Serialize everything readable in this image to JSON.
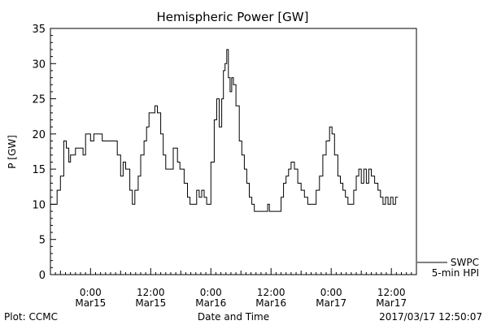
{
  "chart_data": {
    "type": "line",
    "title": "Hemispheric Power [GW]",
    "xlabel": "Date and Time",
    "ylabel": "P [GW]",
    "ylim": [
      0,
      35
    ],
    "y_ticks": [
      0,
      5,
      10,
      15,
      20,
      25,
      30,
      35
    ],
    "xlim": [
      "2017-03-14T16:00",
      "2017-03-17T17:00"
    ],
    "x_ticks": [
      {
        "time": "2017-03-15T00:00",
        "top": "0:00",
        "bottom": "Mar15"
      },
      {
        "time": "2017-03-15T12:00",
        "top": "12:00",
        "bottom": "Mar15"
      },
      {
        "time": "2017-03-16T00:00",
        "top": "0:00",
        "bottom": "Mar16"
      },
      {
        "time": "2017-03-16T12:00",
        "top": "12:00",
        "bottom": "Mar16"
      },
      {
        "time": "2017-03-17T00:00",
        "top": "0:00",
        "bottom": "Mar17"
      },
      {
        "time": "2017-03-17T12:00",
        "top": "12:00",
        "bottom": "Mar17"
      }
    ],
    "grid": false,
    "legend_position": "bottom-right",
    "series": [
      {
        "name": "SWPC 5-min HPI",
        "color": "#000000",
        "points": [
          [
            "2017-03-14T16:00",
            10
          ],
          [
            "2017-03-14T16:50",
            10
          ],
          [
            "2017-03-14T17:20",
            12
          ],
          [
            "2017-03-14T18:00",
            14
          ],
          [
            "2017-03-14T18:40",
            19
          ],
          [
            "2017-03-14T19:10",
            18
          ],
          [
            "2017-03-14T19:40",
            16
          ],
          [
            "2017-03-14T20:00",
            17
          ],
          [
            "2017-03-14T20:30",
            17
          ],
          [
            "2017-03-14T21:00",
            18
          ],
          [
            "2017-03-14T22:00",
            18
          ],
          [
            "2017-03-14T22:30",
            17
          ],
          [
            "2017-03-14T23:00",
            20
          ],
          [
            "2017-03-15T00:00",
            19
          ],
          [
            "2017-03-15T00:40",
            20
          ],
          [
            "2017-03-15T01:50",
            20
          ],
          [
            "2017-03-15T02:20",
            19
          ],
          [
            "2017-03-15T04:30",
            19
          ],
          [
            "2017-03-15T05:20",
            17
          ],
          [
            "2017-03-15T06:00",
            14
          ],
          [
            "2017-03-15T06:30",
            16
          ],
          [
            "2017-03-15T07:00",
            15
          ],
          [
            "2017-03-15T07:50",
            12
          ],
          [
            "2017-03-15T08:20",
            10
          ],
          [
            "2017-03-15T08:50",
            12
          ],
          [
            "2017-03-15T09:30",
            14
          ],
          [
            "2017-03-15T10:00",
            17
          ],
          [
            "2017-03-15T10:40",
            19
          ],
          [
            "2017-03-15T11:10",
            21
          ],
          [
            "2017-03-15T11:40",
            23
          ],
          [
            "2017-03-15T12:20",
            23
          ],
          [
            "2017-03-15T12:50",
            24
          ],
          [
            "2017-03-15T13:20",
            23
          ],
          [
            "2017-03-15T14:00",
            20
          ],
          [
            "2017-03-15T14:30",
            17
          ],
          [
            "2017-03-15T15:00",
            15
          ],
          [
            "2017-03-15T15:50",
            15
          ],
          [
            "2017-03-15T16:30",
            18
          ],
          [
            "2017-03-15T17:20",
            16
          ],
          [
            "2017-03-15T17:50",
            15
          ],
          [
            "2017-03-15T18:40",
            13
          ],
          [
            "2017-03-15T19:20",
            11
          ],
          [
            "2017-03-15T19:50",
            10
          ],
          [
            "2017-03-15T20:30",
            10
          ],
          [
            "2017-03-15T21:10",
            12
          ],
          [
            "2017-03-15T21:40",
            11
          ],
          [
            "2017-03-15T22:10",
            12
          ],
          [
            "2017-03-15T22:40",
            11
          ],
          [
            "2017-03-15T23:10",
            10
          ],
          [
            "2017-03-15T23:40",
            10
          ],
          [
            "2017-03-16T00:00",
            16
          ],
          [
            "2017-03-16T00:40",
            22
          ],
          [
            "2017-03-16T01:10",
            25
          ],
          [
            "2017-03-16T01:40",
            21
          ],
          [
            "2017-03-16T02:10",
            25
          ],
          [
            "2017-03-16T02:30",
            29
          ],
          [
            "2017-03-16T02:50",
            30
          ],
          [
            "2017-03-16T03:10",
            32
          ],
          [
            "2017-03-16T03:30",
            28
          ],
          [
            "2017-03-16T03:50",
            26
          ],
          [
            "2017-03-16T04:10",
            28
          ],
          [
            "2017-03-16T04:30",
            27
          ],
          [
            "2017-03-16T05:00",
            24
          ],
          [
            "2017-03-16T05:40",
            19
          ],
          [
            "2017-03-16T06:10",
            17
          ],
          [
            "2017-03-16T06:40",
            15
          ],
          [
            "2017-03-16T07:10",
            13
          ],
          [
            "2017-03-16T07:40",
            11
          ],
          [
            "2017-03-16T08:10",
            10
          ],
          [
            "2017-03-16T08:40",
            9
          ],
          [
            "2017-03-16T11:00",
            9
          ],
          [
            "2017-03-16T11:20",
            10
          ],
          [
            "2017-03-16T11:40",
            9
          ],
          [
            "2017-03-16T13:30",
            9
          ],
          [
            "2017-03-16T14:00",
            11
          ],
          [
            "2017-03-16T14:30",
            13
          ],
          [
            "2017-03-16T15:00",
            14
          ],
          [
            "2017-03-16T15:30",
            15
          ],
          [
            "2017-03-16T16:00",
            16
          ],
          [
            "2017-03-16T16:40",
            15
          ],
          [
            "2017-03-16T17:20",
            13
          ],
          [
            "2017-03-16T18:00",
            12
          ],
          [
            "2017-03-16T18:40",
            11
          ],
          [
            "2017-03-16T19:20",
            10
          ],
          [
            "2017-03-16T20:30",
            10
          ],
          [
            "2017-03-16T21:00",
            12
          ],
          [
            "2017-03-16T21:40",
            14
          ],
          [
            "2017-03-16T22:20",
            17
          ],
          [
            "2017-03-16T23:00",
            19
          ],
          [
            "2017-03-16T23:40",
            21
          ],
          [
            "2017-03-17T00:10",
            20
          ],
          [
            "2017-03-17T00:40",
            17
          ],
          [
            "2017-03-17T01:20",
            14
          ],
          [
            "2017-03-17T01:50",
            13
          ],
          [
            "2017-03-17T02:20",
            12
          ],
          [
            "2017-03-17T02:50",
            11
          ],
          [
            "2017-03-17T03:20",
            10
          ],
          [
            "2017-03-17T04:00",
            10
          ],
          [
            "2017-03-17T04:30",
            12
          ],
          [
            "2017-03-17T05:00",
            14
          ],
          [
            "2017-03-17T05:30",
            15
          ],
          [
            "2017-03-17T06:00",
            13
          ],
          [
            "2017-03-17T06:30",
            15
          ],
          [
            "2017-03-17T07:00",
            13
          ],
          [
            "2017-03-17T07:30",
            15
          ],
          [
            "2017-03-17T08:00",
            14
          ],
          [
            "2017-03-17T08:40",
            13
          ],
          [
            "2017-03-17T09:20",
            12
          ],
          [
            "2017-03-17T09:50",
            11
          ],
          [
            "2017-03-17T10:20",
            10
          ],
          [
            "2017-03-17T10:50",
            11
          ],
          [
            "2017-03-17T11:20",
            10
          ],
          [
            "2017-03-17T11:50",
            11
          ],
          [
            "2017-03-17T12:20",
            10
          ],
          [
            "2017-03-17T12:50",
            11
          ],
          [
            "2017-03-17T13:20",
            11
          ]
        ]
      }
    ]
  },
  "legend": {
    "line1": "SWPC",
    "line2": "5-min HPI"
  },
  "footer": {
    "plot_credit": "Plot: CCMC",
    "timestamp": "2017/03/17 12:50:07"
  }
}
